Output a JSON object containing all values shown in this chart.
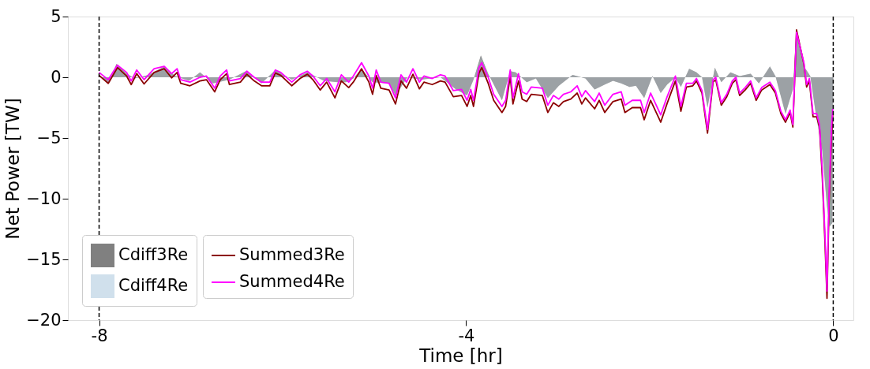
{
  "chart_data": {
    "type": "line",
    "xlabel": "Time [hr]",
    "ylabel": "Net Power [TW]",
    "xlim": [
      -8.34,
      0.22
    ],
    "xticks": [
      -8,
      -4,
      0
    ],
    "ylim": [
      -20,
      5
    ],
    "yticks": [
      {
        "value": -20,
        "label": "−20"
      },
      {
        "value": -15,
        "label": "−15"
      },
      {
        "value": -10,
        "label": "−10"
      },
      {
        "value": -5,
        "label": "−5"
      },
      {
        "value": 0,
        "label": "0"
      },
      {
        "value": 5,
        "label": "5"
      }
    ],
    "grid": false,
    "legend": "bottom left",
    "line_style": "solid",
    "marker": "none",
    "ref_lines": [
      {
        "axis": "x",
        "value": -8,
        "color": "#000000",
        "line_style": "dashed"
      },
      {
        "axis": "x",
        "value": 0,
        "color": "#000000",
        "line_style": "dashed"
      }
    ],
    "series": [
      {
        "name": "Cdiff3Re",
        "type": "area",
        "color": "#808080",
        "x": [
          -8.0,
          -7.9,
          -7.81,
          -7.7,
          -7.61,
          -7.46,
          -7.29,
          -7.17,
          -7.02,
          -6.9,
          -6.76,
          -6.58,
          -6.4,
          -6.23,
          -6.08,
          -5.9,
          -5.73,
          -5.55,
          -5.4,
          -5.31,
          -5.23,
          -5.14,
          -5.02,
          -4.84,
          -4.77,
          -4.64,
          -4.49,
          -4.28,
          -4.11,
          -3.99,
          -3.92,
          -3.84,
          -3.76,
          -3.61,
          -3.52,
          -3.46,
          -3.34,
          -3.24,
          -3.11,
          -2.99,
          -2.84,
          -2.7,
          -2.6,
          -2.49,
          -2.4,
          -2.31,
          -2.22,
          -2.15,
          -2.06,
          -1.97,
          -1.88,
          -1.81,
          -1.72,
          -1.66,
          -1.57,
          -1.49,
          -1.43,
          -1.37,
          -1.29,
          -1.22,
          -1.12,
          -1.02,
          -0.9,
          -0.81,
          -0.69,
          -0.63,
          -0.52,
          -0.44,
          -0.4,
          -0.31,
          -0.25,
          -0.19,
          -0.12,
          -0.07,
          -0.04,
          -0.01,
          0.0
        ],
        "values": [
          0.1,
          -0.5,
          1.1,
          0.3,
          -0.1,
          0.2,
          0.9,
          0.1,
          -0.3,
          0.4,
          -0.5,
          -0.2,
          0.5,
          -0.5,
          0.6,
          -0.2,
          0.4,
          -0.3,
          -0.4,
          -0.4,
          -0.1,
          0.7,
          -0.4,
          -0.5,
          -1.5,
          0.0,
          -0.2,
          0.0,
          -1.0,
          -1.5,
          -0.2,
          1.8,
          0.3,
          -1.9,
          0.5,
          0.4,
          -0.4,
          -0.1,
          -1.7,
          -0.7,
          0.2,
          -0.1,
          -1.0,
          -0.6,
          -0.3,
          -0.5,
          -0.8,
          -0.7,
          -1.7,
          0.1,
          -1.3,
          -0.6,
          0.0,
          -0.8,
          0.7,
          0.4,
          0.0,
          -2.5,
          0.8,
          -0.4,
          0.4,
          0.1,
          0.3,
          -0.5,
          0.9,
          0.1,
          -3.0,
          -1.0,
          4.0,
          0.8,
          0.1,
          -3.0,
          -6.0,
          -10.5,
          -12.3,
          -12.0,
          0.0
        ]
      },
      {
        "name": "Cdiff4Re",
        "type": "area",
        "color": "#d0e0ec",
        "x": [
          -8.0,
          -7.9,
          -7.81,
          -7.7,
          -7.61,
          -7.46,
          -7.29,
          -7.17,
          -7.02,
          -6.9,
          -6.76,
          -6.58,
          -6.4,
          -6.23,
          -6.08,
          -5.9,
          -5.73,
          -5.55,
          -5.4,
          -5.31,
          -5.23,
          -5.14,
          -5.02,
          -4.84,
          -4.77,
          -4.64,
          -4.49,
          -4.28,
          -4.11,
          -3.99,
          -3.92,
          -3.84,
          -3.76,
          -3.61,
          -3.52,
          -3.46,
          -3.34,
          -3.24,
          -3.11,
          -2.99,
          -2.84,
          -2.7,
          -2.6,
          -2.49,
          -2.4,
          -2.31,
          -2.22,
          -2.15,
          -2.06,
          -1.97,
          -1.88,
          -1.81,
          -1.72,
          -1.66,
          -1.57,
          -1.49,
          -1.43,
          -1.37,
          -1.29,
          -1.22,
          -1.12,
          -1.02,
          -0.9,
          -0.81,
          -0.69,
          -0.63,
          -0.52,
          -0.44,
          -0.4,
          -0.31,
          -0.25,
          -0.19,
          -0.12,
          -0.07,
          -0.04,
          -0.01,
          0.0
        ],
        "values": [
          0.1,
          -0.5,
          1.0,
          0.3,
          -0.1,
          0.2,
          0.9,
          0.1,
          -0.3,
          0.4,
          -0.5,
          -0.2,
          0.5,
          -0.5,
          0.6,
          -0.2,
          0.4,
          -0.3,
          -0.4,
          -0.4,
          -0.1,
          0.7,
          -0.4,
          -0.5,
          -1.5,
          0.0,
          -0.2,
          0.0,
          -1.0,
          -1.5,
          -0.2,
          1.7,
          0.3,
          -1.9,
          0.5,
          0.4,
          -0.4,
          -0.1,
          -1.7,
          -0.7,
          0.2,
          -0.1,
          -1.0,
          -0.6,
          -0.3,
          -0.5,
          -0.8,
          -0.7,
          -1.7,
          0.1,
          -1.3,
          -0.6,
          0.0,
          -0.8,
          0.7,
          0.4,
          0.0,
          -2.5,
          0.8,
          -0.4,
          0.4,
          0.1,
          0.3,
          -0.5,
          0.9,
          0.1,
          -3.0,
          -1.0,
          3.8,
          0.8,
          0.1,
          -3.0,
          -6.0,
          -10.5,
          -12.3,
          -12.0,
          0.0
        ]
      },
      {
        "name": "Summed3Re",
        "color": "#8b0000",
        "x": [
          -8.0,
          -7.9,
          -7.8,
          -7.7,
          -7.65,
          -7.59,
          -7.51,
          -7.4,
          -7.29,
          -7.21,
          -7.15,
          -7.11,
          -7.01,
          -6.9,
          -6.83,
          -6.74,
          -6.68,
          -6.61,
          -6.58,
          -6.46,
          -6.39,
          -6.31,
          -6.23,
          -6.14,
          -6.08,
          -6.02,
          -5.9,
          -5.81,
          -5.73,
          -5.67,
          -5.59,
          -5.52,
          -5.43,
          -5.36,
          -5.28,
          -5.23,
          -5.14,
          -5.06,
          -5.02,
          -4.98,
          -4.93,
          -4.84,
          -4.77,
          -4.71,
          -4.65,
          -4.58,
          -4.51,
          -4.46,
          -4.37,
          -4.28,
          -4.23,
          -4.14,
          -4.05,
          -3.99,
          -3.95,
          -3.92,
          -3.86,
          -3.83,
          -3.76,
          -3.7,
          -3.61,
          -3.57,
          -3.52,
          -3.49,
          -3.43,
          -3.39,
          -3.34,
          -3.29,
          -3.17,
          -3.11,
          -3.05,
          -2.99,
          -2.94,
          -2.86,
          -2.79,
          -2.74,
          -2.7,
          -2.6,
          -2.55,
          -2.49,
          -2.4,
          -2.31,
          -2.27,
          -2.19,
          -2.1,
          -2.06,
          -1.99,
          -1.88,
          -1.81,
          -1.72,
          -1.66,
          -1.6,
          -1.53,
          -1.49,
          -1.43,
          -1.37,
          -1.31,
          -1.28,
          -1.22,
          -1.16,
          -1.1,
          -1.06,
          -1.02,
          -0.96,
          -0.9,
          -0.84,
          -0.78,
          -0.69,
          -0.63,
          -0.57,
          -0.52,
          -0.47,
          -0.44,
          -0.4,
          -0.32,
          -0.29,
          -0.26,
          -0.22,
          -0.18,
          -0.15,
          -0.12,
          -0.09,
          -0.068,
          -0.045,
          -0.02,
          -0.005
        ],
        "values": [
          0.15,
          -0.5,
          0.8,
          0.1,
          -0.6,
          0.3,
          -0.55,
          0.4,
          0.7,
          -0.05,
          0.4,
          -0.5,
          -0.7,
          -0.3,
          -0.2,
          -1.2,
          -0.2,
          0.3,
          -0.6,
          -0.4,
          0.25,
          -0.3,
          -0.7,
          -0.7,
          0.35,
          0.15,
          -0.7,
          -0.1,
          0.25,
          -0.2,
          -1.05,
          -0.4,
          -1.7,
          -0.3,
          -0.85,
          -0.4,
          0.7,
          -0.4,
          -1.4,
          0.15,
          -0.9,
          -1.05,
          -2.2,
          -0.3,
          -0.9,
          0.25,
          -0.95,
          -0.4,
          -0.6,
          -0.3,
          -0.4,
          -1.6,
          -1.5,
          -2.4,
          -1.5,
          -2.4,
          0.35,
          0.8,
          -0.5,
          -1.9,
          -2.9,
          -2.4,
          0.05,
          -2.2,
          -0.3,
          -1.8,
          -2.0,
          -1.4,
          -1.5,
          -2.9,
          -2.1,
          -2.4,
          -2.0,
          -1.8,
          -1.3,
          -2.2,
          -1.7,
          -2.6,
          -1.9,
          -2.9,
          -2.0,
          -1.8,
          -2.9,
          -2.5,
          -2.5,
          -3.5,
          -1.9,
          -3.7,
          -2.15,
          -0.3,
          -2.8,
          -0.8,
          -0.7,
          -0.3,
          -1.3,
          -4.6,
          -0.4,
          -0.2,
          -2.3,
          -1.6,
          -0.5,
          -0.2,
          -1.5,
          -1.05,
          -0.5,
          -1.9,
          -1.05,
          -0.6,
          -1.3,
          -3.0,
          -3.7,
          -2.9,
          -4.1,
          3.9,
          1.1,
          -0.8,
          -0.3,
          -3.25,
          -3.25,
          -4.1,
          -8.1,
          -13.6,
          -18.2,
          -10.3,
          -5.0,
          -3.1
        ]
      },
      {
        "name": "Summed4Re",
        "color": "#ff00ff",
        "x": [
          -8.0,
          -7.9,
          -7.8,
          -7.7,
          -7.65,
          -7.59,
          -7.51,
          -7.4,
          -7.29,
          -7.21,
          -7.15,
          -7.11,
          -7.01,
          -6.9,
          -6.83,
          -6.74,
          -6.68,
          -6.61,
          -6.58,
          -6.46,
          -6.39,
          -6.31,
          -6.23,
          -6.14,
          -6.08,
          -6.02,
          -5.9,
          -5.81,
          -5.73,
          -5.67,
          -5.59,
          -5.52,
          -5.43,
          -5.36,
          -5.28,
          -5.23,
          -5.14,
          -5.06,
          -5.02,
          -4.98,
          -4.93,
          -4.84,
          -4.77,
          -4.71,
          -4.65,
          -4.58,
          -4.51,
          -4.46,
          -4.37,
          -4.28,
          -4.23,
          -4.14,
          -4.05,
          -3.99,
          -3.95,
          -3.92,
          -3.86,
          -3.83,
          -3.76,
          -3.7,
          -3.61,
          -3.57,
          -3.52,
          -3.49,
          -3.43,
          -3.39,
          -3.34,
          -3.29,
          -3.17,
          -3.11,
          -3.05,
          -2.99,
          -2.94,
          -2.86,
          -2.79,
          -2.74,
          -2.7,
          -2.6,
          -2.55,
          -2.49,
          -2.4,
          -2.31,
          -2.27,
          -2.19,
          -2.1,
          -2.06,
          -1.99,
          -1.88,
          -1.81,
          -1.72,
          -1.66,
          -1.6,
          -1.53,
          -1.49,
          -1.43,
          -1.37,
          -1.31,
          -1.28,
          -1.22,
          -1.16,
          -1.1,
          -1.06,
          -1.02,
          -0.96,
          -0.9,
          -0.84,
          -0.78,
          -0.69,
          -0.63,
          -0.57,
          -0.52,
          -0.47,
          -0.44,
          -0.4,
          -0.32,
          -0.29,
          -0.26,
          -0.22,
          -0.18,
          -0.15,
          -0.12,
          -0.09,
          -0.068,
          -0.045,
          -0.02,
          -0.005
        ],
        "values": [
          0.4,
          -0.2,
          1.0,
          0.4,
          -0.3,
          0.6,
          -0.2,
          0.7,
          0.9,
          0.3,
          0.7,
          -0.2,
          -0.4,
          0.0,
          0.1,
          -0.9,
          0.1,
          0.6,
          -0.3,
          -0.1,
          0.5,
          0.0,
          -0.4,
          -0.4,
          0.6,
          0.4,
          -0.4,
          0.2,
          0.5,
          0.1,
          -0.7,
          -0.1,
          -1.2,
          0.2,
          -0.4,
          0.1,
          1.2,
          0.1,
          -0.9,
          0.6,
          -0.4,
          -0.5,
          -1.7,
          0.2,
          -0.4,
          0.7,
          -0.4,
          0.1,
          -0.1,
          0.2,
          0.1,
          -1.1,
          -1.0,
          -1.9,
          -1.0,
          -1.9,
          0.8,
          1.2,
          0.0,
          -1.4,
          -2.4,
          -1.9,
          0.6,
          -1.7,
          0.3,
          -1.2,
          -1.4,
          -0.8,
          -0.9,
          -2.3,
          -1.5,
          -1.8,
          -1.4,
          -1.2,
          -0.7,
          -1.6,
          -1.1,
          -2.0,
          -1.3,
          -2.3,
          -1.4,
          -1.2,
          -2.3,
          -1.9,
          -1.9,
          -2.9,
          -1.3,
          -3.1,
          -1.6,
          0.1,
          -2.4,
          -0.5,
          -0.5,
          -0.1,
          -1.1,
          -4.3,
          -0.2,
          0.0,
          -2.1,
          -1.4,
          -0.3,
          0.0,
          -1.3,
          -0.85,
          -0.3,
          -1.7,
          -0.85,
          -0.4,
          -1.1,
          -2.8,
          -3.5,
          -2.7,
          -3.9,
          3.7,
          1.2,
          -0.6,
          -0.1,
          -3.0,
          -3.0,
          -3.9,
          -7.6,
          -13.0,
          -17.6,
          -9.6,
          -4.4,
          -2.6
        ]
      }
    ]
  }
}
